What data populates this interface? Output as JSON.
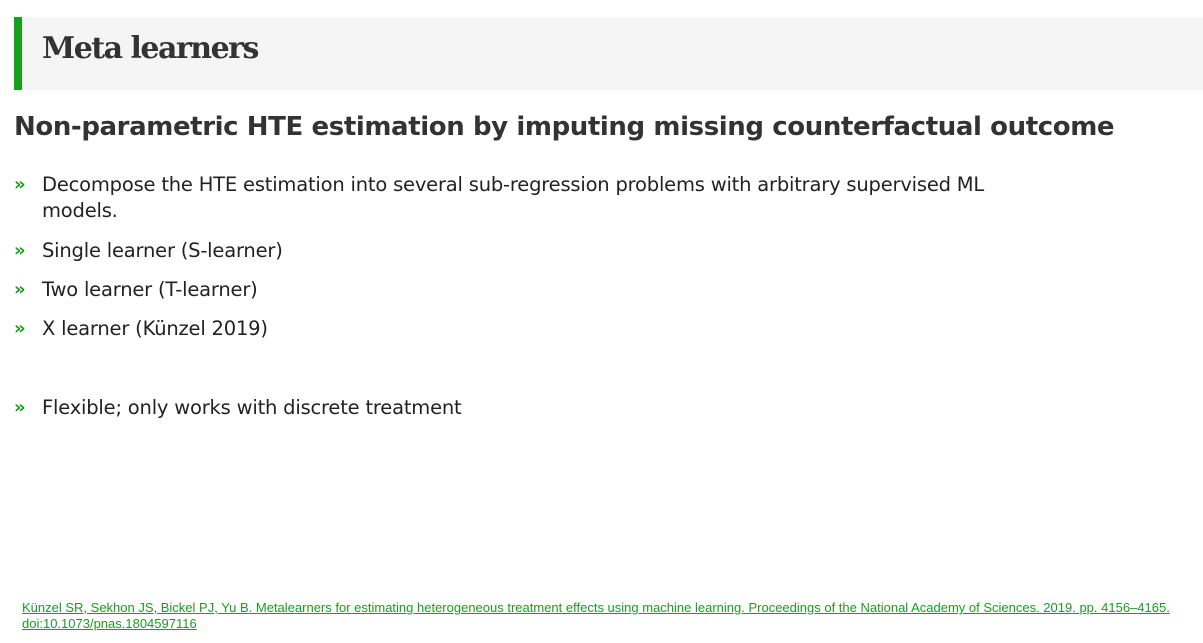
{
  "header": {
    "title": "Meta learners",
    "accent_color": "#17a01c"
  },
  "subtitle": "Non-parametric HTE estimation by imputing missing counterfactual outcome",
  "bullet_marker": "»",
  "bullets": [
    "Decompose the HTE estimation into several sub-regression problems with arbitrary supervised ML models.",
    "Single learner (S-learner)",
    "Two learner (T-learner)",
    "X learner (Künzel 2019)",
    "Flexible; only works with discrete treatment"
  ],
  "footnote": "Künzel SR, Sekhon JS, Bickel PJ, Yu B. Metalearners for estimating heterogeneous treatment effects using machine learning. Proceedings of the National Academy of Sciences. 2019. pp. 4156–4165. doi:10.1073/pnas.1804597116"
}
